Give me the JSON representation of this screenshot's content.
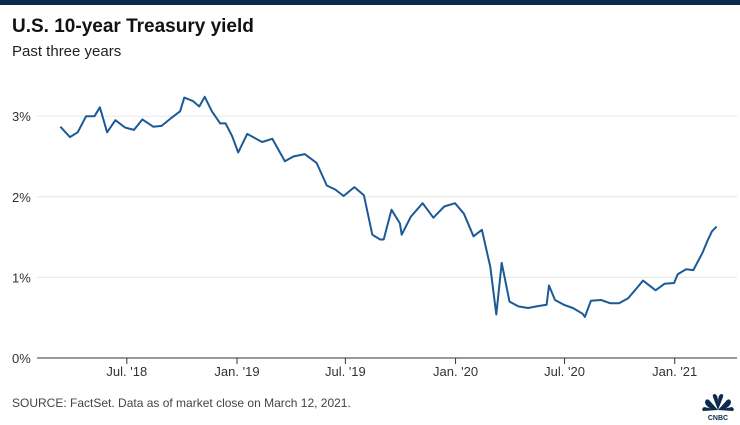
{
  "header": {
    "title": "U.S. 10-year Treasury yield",
    "subtitle": "Past three years"
  },
  "footer": {
    "source": "SOURCE: FactSet. Data as of market close on March 12, 2021.",
    "logo_text": "CNBC"
  },
  "colors": {
    "line": "#1b5a96",
    "grid": "#e6e6e6",
    "brand": "#0b2a4e"
  },
  "chart_data": {
    "type": "line",
    "title": "U.S. 10-year Treasury yield",
    "subtitle": "Past three years",
    "xlabel": "",
    "ylabel": "",
    "y_ticks": [
      "0%",
      "1%",
      "2%",
      "3%"
    ],
    "x_ticks": [
      "Jul. '18",
      "Jan. '19",
      "Jul. '19",
      "Jan. '20",
      "Jul. '20",
      "Jan. '21"
    ],
    "ylim": [
      0,
      3.3
    ],
    "xlim": [
      "2018-02-01",
      "2021-04-15"
    ],
    "grid": true,
    "series": [
      {
        "x": [
          "2018-03-12",
          "2018-03-28",
          "2018-04-10",
          "2018-04-24",
          "2018-05-08",
          "2018-05-17",
          "2018-05-29",
          "2018-06-12",
          "2018-06-28",
          "2018-07-13",
          "2018-07-27",
          "2018-08-14",
          "2018-08-28",
          "2018-09-12",
          "2018-09-28",
          "2018-10-05",
          "2018-10-19",
          "2018-10-30",
          "2018-11-08",
          "2018-11-20",
          "2018-12-04",
          "2018-12-13",
          "2018-12-24",
          "2019-01-03",
          "2019-01-18",
          "2019-02-12",
          "2019-03-01",
          "2019-03-22",
          "2019-04-05",
          "2019-04-24",
          "2019-05-14",
          "2019-05-31",
          "2019-06-14",
          "2019-06-28",
          "2019-07-16",
          "2019-08-01",
          "2019-08-15",
          "2019-08-28",
          "2019-09-03",
          "2019-09-16",
          "2019-09-30",
          "2019-10-03",
          "2019-10-18",
          "2019-11-07",
          "2019-11-25",
          "2019-12-13",
          "2019-12-31",
          "2020-01-15",
          "2020-01-31",
          "2020-02-14",
          "2020-02-28",
          "2020-03-09",
          "2020-03-18",
          "2020-03-31",
          "2020-04-15",
          "2020-05-01",
          "2020-05-15",
          "2020-06-01",
          "2020-06-05",
          "2020-06-15",
          "2020-06-30",
          "2020-07-15",
          "2020-07-31",
          "2020-08-04",
          "2020-08-14",
          "2020-08-31",
          "2020-09-15",
          "2020-09-30",
          "2020-10-15",
          "2020-10-30",
          "2020-11-09",
          "2020-11-30",
          "2020-12-15",
          "2020-12-31",
          "2021-01-06",
          "2021-01-20",
          "2021-02-01",
          "2021-02-16",
          "2021-02-25",
          "2021-03-04",
          "2021-03-12"
        ],
        "values": [
          2.87,
          2.74,
          2.8,
          3.0,
          3.0,
          3.11,
          2.8,
          2.95,
          2.86,
          2.83,
          2.96,
          2.87,
          2.88,
          2.97,
          3.06,
          3.23,
          3.19,
          3.12,
          3.24,
          3.06,
          2.91,
          2.91,
          2.75,
          2.55,
          2.78,
          2.68,
          2.72,
          2.44,
          2.5,
          2.53,
          2.42,
          2.14,
          2.09,
          2.01,
          2.12,
          2.02,
          1.53,
          1.47,
          1.47,
          1.84,
          1.67,
          1.53,
          1.75,
          1.92,
          1.74,
          1.88,
          1.92,
          1.79,
          1.51,
          1.59,
          1.13,
          0.54,
          1.18,
          0.7,
          0.64,
          0.62,
          0.64,
          0.66,
          0.9,
          0.72,
          0.66,
          0.62,
          0.55,
          0.51,
          0.71,
          0.72,
          0.68,
          0.68,
          0.74,
          0.87,
          0.96,
          0.84,
          0.92,
          0.93,
          1.04,
          1.1,
          1.09,
          1.3,
          1.46,
          1.57,
          1.63
        ]
      }
    ]
  }
}
